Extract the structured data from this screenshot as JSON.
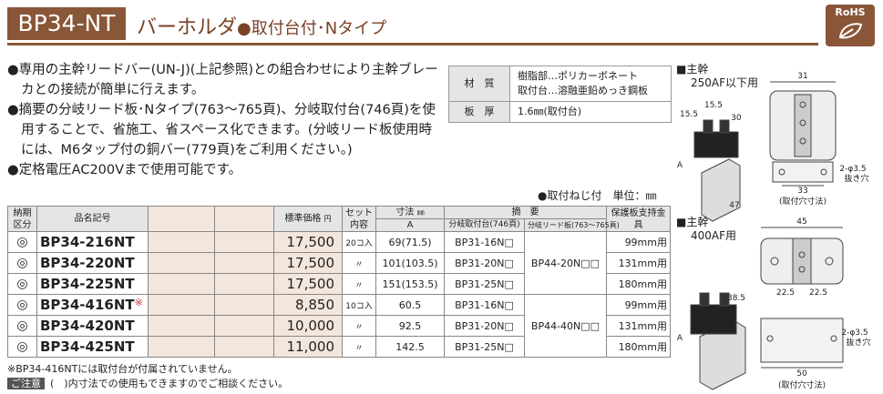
{
  "header": {
    "code": "BP34-NT",
    "title": "バーホルダ",
    "subtitle": "●取付台付･Nタイプ",
    "badge": "RoHS"
  },
  "bullets": [
    "●専用の主幹リードバー(UN-J)(上記参照)との組合わせにより主幹ブレーカとの接続が簡単に行えます。",
    "●摘要の分岐リード板･Nタイプ(763～765頁)、分岐取付台(746頁)を使用することで、省施工、省スペース化できます。(分岐リード板使用時には、M6タップ付の銅バー(779頁)をご利用ください。)",
    "●定格電圧AC200Vまで使用可能です。"
  ],
  "spec": {
    "rows": [
      {
        "label": "材　質",
        "lines": [
          "樹脂部…ポリカーボネート",
          "取付台…溶融亜鉛めっき鋼板"
        ]
      },
      {
        "label": "板　厚",
        "lines": [
          "1.6㎜(取付台)"
        ]
      }
    ]
  },
  "table": {
    "note": "●取付ねじ付　単位：㎜",
    "headers": {
      "delivery": "納期区分",
      "name": "品名記号",
      "price": "標準価格",
      "price_unit": "円",
      "set": "セット内容",
      "dim": "寸法",
      "dim_unit": "㎜",
      "dim_a": "A",
      "summary": "摘　要",
      "mount": "分岐取付台(746頁)",
      "lead": "分岐リード板(763～765頁)",
      "protect": "保護板支持金具"
    },
    "groups": [
      {
        "lead": "BP44-20N□□",
        "items": [
          {
            "symbol": "◎",
            "name": "BP34-216NT",
            "mark": "",
            "price": "17,500",
            "set": "20コ入",
            "a": "69(71.5)",
            "mount": "BP31-16N□",
            "protect": "99mm用"
          },
          {
            "symbol": "◎",
            "name": "BP34-220NT",
            "mark": "",
            "price": "17,500",
            "set": "〃",
            "a": "101(103.5)",
            "mount": "BP31-20N□",
            "protect": "131mm用"
          },
          {
            "symbol": "◎",
            "name": "BP34-225NT",
            "mark": "",
            "price": "17,500",
            "set": "〃",
            "a": "151(153.5)",
            "mount": "BP31-25N□",
            "protect": "180mm用"
          }
        ]
      },
      {
        "lead": "BP44-40N□□",
        "items": [
          {
            "symbol": "◎",
            "name": "BP34-416NT",
            "mark": "※",
            "price": "8,850",
            "set": "10コ入",
            "a": "60.5",
            "mount": "BP31-16N□",
            "protect": "99mm用"
          },
          {
            "symbol": "◎",
            "name": "BP34-420NT",
            "mark": "",
            "price": "10,000",
            "set": "〃",
            "a": "92.5",
            "mount": "BP31-20N□",
            "protect": "131mm用"
          },
          {
            "symbol": "◎",
            "name": "BP34-425NT",
            "mark": "",
            "price": "11,000",
            "set": "〃",
            "a": "142.5",
            "mount": "BP31-25N□",
            "protect": "180mm用"
          }
        ]
      }
    ]
  },
  "footnotes": {
    "note": "※BP34-416NTには取付台が付属されていません。",
    "caution": "ご注意",
    "caution_text": "(　)内寸法での使用もできますのでご相談ください。"
  },
  "diagrams": [
    {
      "title": "■主幹",
      "sub": "250AF以下用",
      "dims": [
        "31",
        "15.5",
        "15.5",
        "30",
        "A",
        "47",
        "33",
        "2-φ3.5",
        "抜き穴",
        "(取付穴寸法)"
      ]
    },
    {
      "title": "■主幹",
      "sub": "400AF用",
      "dims": [
        "45",
        "38.5",
        "A",
        "22.5",
        "22.5",
        "2-φ3.5",
        "抜き穴",
        "50",
        "(取付穴寸法)"
      ]
    }
  ]
}
